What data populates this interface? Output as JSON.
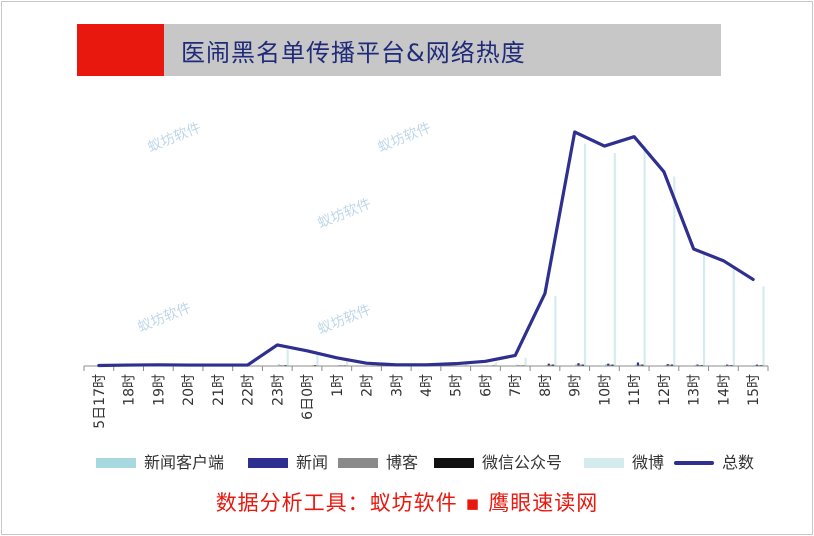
{
  "title": "医闹黑名单传播平台&网络热度",
  "footer": {
    "prefix": "数据分析工具：",
    "tool1": "蚁坊软件",
    "separator": "▪",
    "tool2": "鹰眼速读网"
  },
  "watermark": "蚁坊软件",
  "colors": {
    "title_accent": "#e8180f",
    "title_bg": "#c7c7c7",
    "title_text": "#1f2a7a",
    "footer_text": "#e8180f"
  },
  "legend": [
    {
      "label": "新闻客户端",
      "color": "#a8d8df",
      "kind": "bar"
    },
    {
      "label": "新闻",
      "color": "#2e2f8f",
      "kind": "bar"
    },
    {
      "label": "博客",
      "color": "#8a8a8a",
      "kind": "bar"
    },
    {
      "label": "微信公众号",
      "color": "#111111",
      "kind": "bar"
    },
    {
      "label": "微博",
      "color": "#d5ecef",
      "kind": "bar"
    },
    {
      "label": "总数",
      "color": "#2e2f8f",
      "kind": "line"
    }
  ],
  "chart_data": {
    "type": "bar",
    "combo_line": "总数",
    "categories": [
      "5日17时",
      "18时",
      "19时",
      "20时",
      "21时",
      "22时",
      "23时",
      "6日0时",
      "1时",
      "2时",
      "3时",
      "4时",
      "5时",
      "6时",
      "7时",
      "8时",
      "9时",
      "10时",
      "11时",
      "12时",
      "13时",
      "14时",
      "15时"
    ],
    "y_axis_visible": false,
    "ylim": [
      0,
      1000
    ],
    "grid": false,
    "legend_position": "bottom",
    "series": [
      {
        "name": "新闻客户端",
        "color": "#a8d8df",
        "values": [
          0,
          0,
          0,
          0,
          0,
          0,
          8,
          0,
          4,
          0,
          0,
          0,
          0,
          3,
          6,
          4,
          8,
          8,
          6,
          4,
          4,
          4,
          4
        ]
      },
      {
        "name": "新闻",
        "color": "#2e2f8f",
        "values": [
          0,
          0,
          0,
          0,
          0,
          0,
          3,
          0,
          3,
          0,
          0,
          0,
          0,
          0,
          3,
          10,
          12,
          10,
          15,
          8,
          6,
          6,
          6
        ]
      },
      {
        "name": "博客",
        "color": "#8a8a8a",
        "values": [
          0,
          0,
          0,
          0,
          0,
          0,
          3,
          3,
          3,
          3,
          0,
          0,
          0,
          0,
          3,
          6,
          6,
          6,
          6,
          6,
          4,
          4,
          4
        ]
      },
      {
        "name": "微信公众号",
        "color": "#111111",
        "values": [
          0,
          0,
          0,
          0,
          0,
          0,
          4,
          4,
          3,
          0,
          0,
          0,
          0,
          3,
          3,
          6,
          6,
          6,
          6,
          6,
          4,
          4,
          4
        ]
      },
      {
        "name": "微博",
        "color": "#d5ecef",
        "values": [
          2,
          3,
          3,
          3,
          3,
          3,
          70,
          50,
          30,
          10,
          5,
          5,
          10,
          15,
          35,
          300,
          950,
          910,
          940,
          810,
          480,
          430,
          340
        ]
      },
      {
        "name": "总数",
        "color": "#2e2f8f",
        "type": "line",
        "values": [
          2,
          4,
          5,
          4,
          4,
          4,
          90,
          65,
          35,
          12,
          5,
          5,
          10,
          20,
          45,
          310,
          1000,
          940,
          980,
          830,
          500,
          450,
          370
        ]
      }
    ]
  }
}
